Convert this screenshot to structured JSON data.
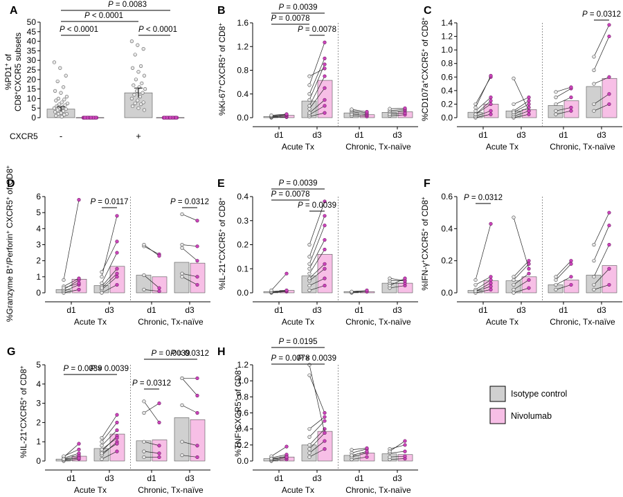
{
  "figure": {
    "legend": [
      {
        "label": "Isotype control",
        "color": "#d0d0d0"
      },
      {
        "label": "Nivolumab",
        "color": "#f7bfe6"
      }
    ],
    "colors": {
      "isotype": "#d0d0d0",
      "nivolumab": "#f7bfe6",
      "nivolumab_point": "#cc44bb",
      "isotype_point": "#aaaaaa"
    }
  },
  "chart_data": [
    {
      "panel": "A",
      "type": "bar",
      "ylabel": [
        "%PD1",
        "+",
        " of",
        "CD8",
        "+",
        "CXCR5 subsets"
      ],
      "ylim": [
        0,
        50
      ],
      "yticks": [
        "0",
        "5",
        "10",
        "15",
        "20",
        "25",
        "30",
        "35",
        "40",
        "45",
        "50"
      ],
      "row_label": "CXCR5",
      "groups": [
        {
          "label": "-",
          "bars": [
            {
              "series": "Isotype control",
              "value": 4.5
            },
            {
              "series": "Nivolumab",
              "value": 0.1
            }
          ]
        },
        {
          "label": "+",
          "bars": [
            {
              "series": "Isotype control",
              "value": 13
            },
            {
              "series": "Nivolumab",
              "value": 0.1
            }
          ]
        }
      ],
      "points": {
        "neg_iso": [
          29,
          26,
          22,
          19,
          16,
          14,
          13,
          11,
          10,
          9.5,
          9,
          8,
          7.5,
          7,
          6.5,
          6,
          5.5,
          5,
          4.5,
          4.5,
          4,
          3.5,
          3,
          2.5,
          2,
          2,
          1.5,
          1,
          0.5
        ],
        "neg_niv": [
          0,
          0,
          0,
          0,
          0,
          0,
          0,
          0,
          0,
          0,
          0,
          0,
          0,
          0,
          0,
          0,
          0,
          0,
          0,
          0,
          0,
          0,
          0,
          0,
          0,
          0,
          0,
          0,
          0
        ],
        "pos_iso": [
          40,
          38,
          36,
          33,
          27,
          26,
          24,
          22,
          20,
          18,
          17,
          16,
          15,
          14,
          13,
          12,
          11,
          10,
          9,
          8,
          7.5,
          7,
          6,
          5,
          4
        ],
        "pos_niv": [
          0,
          0,
          0,
          0,
          0,
          0,
          0,
          0,
          0,
          0,
          0,
          0,
          0,
          0,
          0,
          0,
          0,
          0,
          0,
          0,
          0,
          0,
          0,
          0,
          0
        ]
      },
      "annotations": [
        "P < 0.0001",
        "P < 0.0001",
        "P = 0.0083",
        "P < 0.0001"
      ]
    },
    {
      "panel": "B",
      "type": "bar",
      "ylabel": [
        "%Ki-67",
        "+",
        "CXCR5",
        "+",
        " of CD8",
        "+"
      ],
      "ylim": [
        0,
        1.6
      ],
      "yticks": [
        "0.0",
        "0.4",
        "0.8",
        "1.2",
        "1.6"
      ],
      "xticks": [
        "d1",
        "d3",
        "d1",
        "d3"
      ],
      "groups": [
        "Acute Tx",
        "Chronic, Tx-naïve"
      ],
      "bars": [
        [
          0.02,
          0.04
        ],
        [
          0.28,
          0.63
        ],
        [
          0.08,
          0.05
        ],
        [
          0.09,
          0.1
        ]
      ],
      "pairs": [
        [
          [
            0,
            0.01
          ],
          [
            0.01,
            0.02
          ],
          [
            0.02,
            0.04
          ],
          [
            0.03,
            0.05
          ],
          [
            0.04,
            0.06
          ]
        ],
        [
          [
            0.02,
            0.08
          ],
          [
            0.05,
            0.2
          ],
          [
            0.08,
            0.3
          ],
          [
            0.15,
            0.5
          ],
          [
            0.2,
            0.7
          ],
          [
            0.3,
            0.9
          ],
          [
            0.4,
            1.0
          ],
          [
            0.55,
            1.27
          ],
          [
            0.7,
            0.83
          ]
        ],
        [
          [
            0.03,
            0.02
          ],
          [
            0.06,
            0.04
          ],
          [
            0.1,
            0.06
          ],
          [
            0.12,
            0.08
          ],
          [
            0.14,
            0.1
          ]
        ],
        [
          [
            0.03,
            0.05
          ],
          [
            0.06,
            0.08
          ],
          [
            0.1,
            0.12
          ],
          [
            0.12,
            0.14
          ],
          [
            0.15,
            0.16
          ]
        ]
      ],
      "annotations": [
        "P = 0.0039",
        "P = 0.0078",
        "P = 0.0078"
      ]
    },
    {
      "panel": "C",
      "type": "bar",
      "ylabel": [
        "%CD107a",
        "+",
        "CXCR5",
        "+",
        " of CD8",
        "+"
      ],
      "ylim": [
        0,
        1.4
      ],
      "yticks": [
        "0.0",
        "0.2",
        "0.4",
        "0.6",
        "0.8",
        "1.0",
        "1.2",
        "1.4"
      ],
      "xticks": [
        "d1",
        "d3",
        "d1",
        "d3"
      ],
      "groups": [
        "Acute Tx",
        "Chronic, Tx-naïve"
      ],
      "bars": [
        [
          0.08,
          0.2
        ],
        [
          0.1,
          0.12
        ],
        [
          0.18,
          0.25
        ],
        [
          0.46,
          0.58
        ]
      ],
      "pairs": [
        [
          [
            0,
            0.05
          ],
          [
            0.02,
            0.1
          ],
          [
            0.05,
            0.2
          ],
          [
            0.1,
            0.3
          ],
          [
            0.2,
            0.6
          ],
          [
            0.15,
            0.62
          ],
          [
            0.05,
            0.25
          ]
        ],
        [
          [
            0,
            0.05
          ],
          [
            0.02,
            0.1
          ],
          [
            0.05,
            0.15
          ],
          [
            0.1,
            0.25
          ],
          [
            0.58,
            0.1
          ],
          [
            0.2,
            0.3
          ],
          [
            0.08,
            0.2
          ]
        ],
        [
          [
            0.05,
            0.1
          ],
          [
            0.1,
            0.15
          ],
          [
            0.2,
            0.3
          ],
          [
            0.3,
            0.43
          ],
          [
            0.38,
            0.45
          ]
        ],
        [
          [
            0.1,
            0.2
          ],
          [
            0.2,
            0.35
          ],
          [
            0.7,
            1.2
          ],
          [
            0.9,
            1.37
          ],
          [
            0.5,
            0.6
          ]
        ]
      ],
      "annotations": [
        "P = 0.0312"
      ]
    },
    {
      "panel": "D",
      "type": "bar",
      "ylabel": [
        "%Granzyme B",
        "+",
        "/Perforin",
        "+",
        " CXCR5",
        "+",
        " of CD8",
        "+"
      ],
      "ylim": [
        0,
        6
      ],
      "yticks": [
        "0",
        "1",
        "2",
        "3",
        "4",
        "5",
        "6"
      ],
      "xticks": [
        "d1",
        "d3",
        "d1",
        "d3"
      ],
      "groups": [
        "Acute Tx",
        "Chronic, Tx-naïve"
      ],
      "bars": [
        [
          0.2,
          0.85
        ],
        [
          0.45,
          1.65
        ],
        [
          1.1,
          1.0
        ],
        [
          1.9,
          1.85
        ]
      ],
      "pairs": [
        [
          [
            0,
            0.2
          ],
          [
            0.1,
            0.5
          ],
          [
            0.2,
            0.8
          ],
          [
            0.4,
            0.9
          ],
          [
            0.8,
            5.8
          ],
          [
            0.3,
            0.6
          ]
        ],
        [
          [
            0,
            0.5
          ],
          [
            0.2,
            1.0
          ],
          [
            0.4,
            1.5
          ],
          [
            0.6,
            2.5
          ],
          [
            1.0,
            4.8
          ],
          [
            1.3,
            3.2
          ],
          [
            0.3,
            1.2
          ]
        ],
        [
          [
            2.9,
            2.4
          ],
          [
            3.0,
            2.3
          ],
          [
            1.1,
            0.3
          ],
          [
            0.2,
            0.1
          ]
        ],
        [
          [
            1.0,
            0.5
          ],
          [
            1.2,
            1.0
          ],
          [
            2.8,
            2.0
          ],
          [
            4.9,
            4.5
          ],
          [
            3.0,
            2.9
          ]
        ]
      ],
      "annotations": [
        "P = 0.0117",
        "P = 0.0312"
      ]
    },
    {
      "panel": "E",
      "type": "bar",
      "ylabel": [
        "%IL-21",
        "+",
        "CXCR5",
        "+",
        " of CD8",
        "+"
      ],
      "ylim": [
        0,
        0.4
      ],
      "yticks": [
        "0.0",
        "0.1",
        "0.2",
        "0.3",
        "0.4"
      ],
      "xticks": [
        "d1",
        "d3",
        "d1",
        "d3"
      ],
      "groups": [
        "Acute Tx",
        "Chronic, Tx-naïve"
      ],
      "bars": [
        [
          0.005,
          0.01
        ],
        [
          0.07,
          0.16
        ],
        [
          0.005,
          0.005
        ],
        [
          0.04,
          0.04
        ]
      ],
      "pairs": [
        [
          [
            0,
            0.005
          ],
          [
            0.002,
            0.008
          ],
          [
            0.005,
            0.01
          ],
          [
            0.01,
            0.08
          ]
        ],
        [
          [
            0.01,
            0.03
          ],
          [
            0.03,
            0.06
          ],
          [
            0.05,
            0.1
          ],
          [
            0.08,
            0.18
          ],
          [
            0.1,
            0.22
          ],
          [
            0.12,
            0.28
          ],
          [
            0.15,
            0.32
          ],
          [
            0.2,
            0.38
          ],
          [
            0.06,
            0.12
          ]
        ],
        [
          [
            0,
            0.005
          ],
          [
            0.003,
            0.005
          ],
          [
            0.005,
            0.01
          ]
        ],
        [
          [
            0.02,
            0.03
          ],
          [
            0.04,
            0.04
          ],
          [
            0.05,
            0.05
          ],
          [
            0.06,
            0.05
          ],
          [
            0.03,
            0.06
          ]
        ]
      ],
      "annotations": [
        "P = 0.0039",
        "P = 0.0078",
        "P = 0.0039"
      ]
    },
    {
      "panel": "F",
      "type": "bar",
      "ylabel": [
        "%IFN-γ",
        "+",
        "CXCR5",
        "+",
        " of CD8",
        "+"
      ],
      "ylim": [
        0,
        0.6
      ],
      "yticks": [
        "0.0",
        "0.2",
        "0.4",
        "0.6"
      ],
      "xticks": [
        "d1",
        "d3",
        "d1",
        "d3"
      ],
      "groups": [
        "Acute Tx",
        "Chronic, Tx-naïve"
      ],
      "bars": [
        [
          0.015,
          0.075
        ],
        [
          0.075,
          0.1
        ],
        [
          0.05,
          0.08
        ],
        [
          0.11,
          0.17
        ]
      ],
      "pairs": [
        [
          [
            0,
            0.02
          ],
          [
            0.01,
            0.04
          ],
          [
            0.02,
            0.08
          ],
          [
            0.05,
            0.1
          ],
          [
            0.08,
            0.43
          ],
          [
            0.01,
            0.06
          ]
        ],
        [
          [
            0,
            0.03
          ],
          [
            0.02,
            0.08
          ],
          [
            0.05,
            0.12
          ],
          [
            0.08,
            0.18
          ],
          [
            0.47,
            0.15
          ],
          [
            0.1,
            0.2
          ]
        ],
        [
          [
            0.02,
            0.05
          ],
          [
            0.05,
            0.1
          ],
          [
            0.08,
            0.18
          ],
          [
            0.1,
            0.2
          ]
        ],
        [
          [
            0.02,
            0.05
          ],
          [
            0.05,
            0.15
          ],
          [
            0.1,
            0.3
          ],
          [
            0.3,
            0.5
          ],
          [
            0.2,
            0.42
          ]
        ]
      ],
      "annotations": [
        "P = 0.0312"
      ]
    },
    {
      "panel": "G",
      "type": "bar",
      "ylabel": [
        "%IL-21",
        "+",
        "CXCR5",
        "+",
        " of CD8",
        "+"
      ],
      "ylim": [
        0,
        5
      ],
      "yticks": [
        "0",
        "1",
        "2",
        "3",
        "4",
        "5"
      ],
      "xticks": [
        "d1",
        "d3",
        "d1",
        "d3"
      ],
      "groups": [
        "Acute Tx",
        "Chronic, Tx-naïve"
      ],
      "bars": [
        [
          0.1,
          0.25
        ],
        [
          0.65,
          1.4
        ],
        [
          1.05,
          1.1
        ],
        [
          2.25,
          2.15
        ]
      ],
      "pairs": [
        [
          [
            0,
            0.1
          ],
          [
            0.05,
            0.2
          ],
          [
            0.1,
            0.3
          ],
          [
            0.15,
            0.4
          ],
          [
            0.2,
            0.9
          ],
          [
            0.25,
            0.6
          ],
          [
            0.1,
            0.15
          ]
        ],
        [
          [
            0.1,
            0.5
          ],
          [
            0.3,
            1.0
          ],
          [
            0.5,
            1.3
          ],
          [
            0.8,
            1.6
          ],
          [
            1.0,
            2.0
          ],
          [
            1.2,
            2.4
          ],
          [
            0.4,
            0.9
          ],
          [
            0.6,
            1.2
          ]
        ],
        [
          [
            0.2,
            0.2
          ],
          [
            0.5,
            0.4
          ],
          [
            2.5,
            3.0
          ],
          [
            3.1,
            2.0
          ],
          [
            1.0,
            0.8
          ]
        ],
        [
          [
            0.3,
            0.2
          ],
          [
            1.0,
            0.8
          ],
          [
            2.9,
            2.5
          ],
          [
            4.3,
            3.4
          ],
          [
            4.3,
            4.3
          ]
        ]
      ],
      "annotations": [
        "P = 0.0039",
        "P = 0.0039",
        "P = 0.0039",
        "P = 0.0312",
        "P = 0.0312"
      ]
    },
    {
      "panel": "H",
      "type": "bar",
      "ylabel": [
        "%TNF",
        "+",
        "CXCR5",
        "+",
        " of CD8",
        "+"
      ],
      "ylim": [
        0,
        1.2
      ],
      "yticks": [
        "0.0",
        "0.2",
        "0.4",
        "0.6",
        "0.8",
        "1.0",
        "1.2"
      ],
      "xticks": [
        "d1",
        "d3",
        "d1",
        "d3"
      ],
      "groups": [
        "Acute Tx",
        "Chronic, Tx-naïve"
      ],
      "bars": [
        [
          0.03,
          0.05
        ],
        [
          0.2,
          0.37
        ],
        [
          0.07,
          0.1
        ],
        [
          0.09,
          0.08
        ]
      ],
      "pairs": [
        [
          [
            0,
            0.02
          ],
          [
            0.01,
            0.04
          ],
          [
            0.02,
            0.06
          ],
          [
            0.04,
            0.08
          ],
          [
            0.06,
            0.18
          ],
          [
            0.03,
            0.05
          ]
        ],
        [
          [
            0.05,
            0.15
          ],
          [
            0.1,
            0.25
          ],
          [
            0.15,
            0.35
          ],
          [
            0.2,
            0.4
          ],
          [
            0.3,
            0.5
          ],
          [
            0.4,
            0.55
          ],
          [
            1.2,
            0.35
          ],
          [
            1.07,
            0.6
          ]
        ],
        [
          [
            0.02,
            0.05
          ],
          [
            0.05,
            0.1
          ],
          [
            0.1,
            0.15
          ],
          [
            0.14,
            0.16
          ],
          [
            0.07,
            0.12
          ]
        ],
        [
          [
            0.02,
            0.03
          ],
          [
            0.05,
            0.06
          ],
          [
            0.1,
            0.12
          ],
          [
            0.15,
            0.2
          ],
          [
            0.12,
            0.25
          ]
        ]
      ],
      "annotations": [
        "P = 0.0078",
        "P = 0.0195",
        "P = 0.0039"
      ]
    }
  ]
}
